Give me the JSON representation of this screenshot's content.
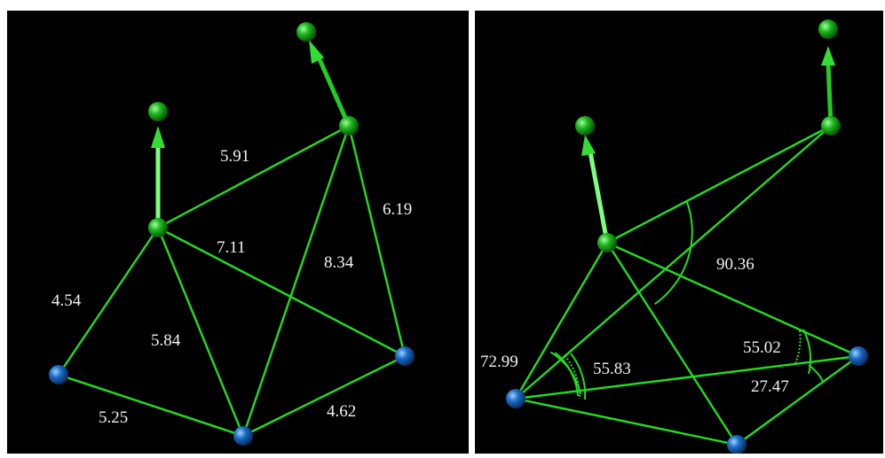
{
  "colors": {
    "background": "#000000",
    "line": "#22dd22",
    "green_atom": "#1a8a1a",
    "blue_atom": "#1a5fb0",
    "label": "#f2f2f2"
  },
  "left_panel": {
    "distances": [
      "5.91",
      "6.19",
      "7.11",
      "8.34",
      "4.54",
      "5.84",
      "5.25",
      "4.62"
    ]
  },
  "right_panel": {
    "angles": [
      "90.36",
      "72.99",
      "55.83",
      "55.02",
      "27.47"
    ]
  }
}
